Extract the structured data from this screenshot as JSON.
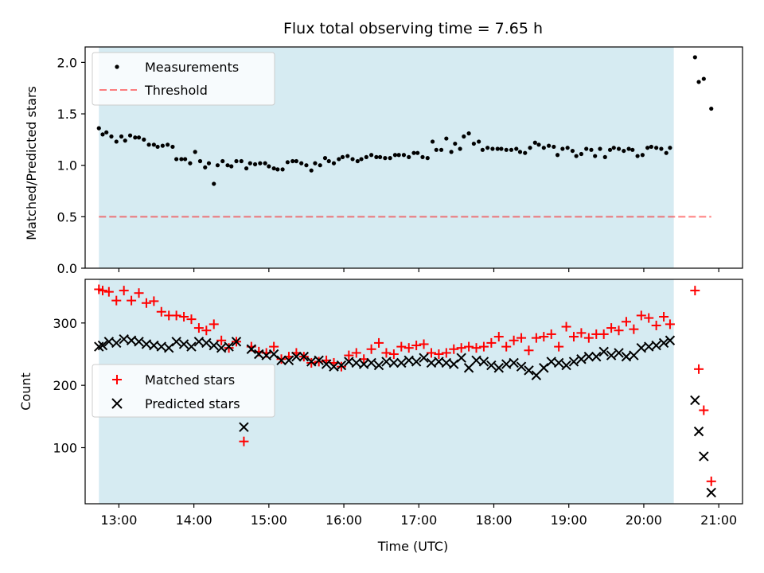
{
  "figure": {
    "title": "Flux total observing time = 7.65 h",
    "xlabel": "Time (UTC)",
    "x_tick_labels": [
      "13:00",
      "14:00",
      "15:00",
      "16:00",
      "17:00",
      "18:00",
      "19:00",
      "20:00",
      "21:00"
    ]
  },
  "colors": {
    "shade": "#add8e6",
    "measurement": "#000000",
    "threshold": "#ff0000",
    "matched": "#ff0000",
    "predicted": "#000000"
  },
  "chart_data": [
    {
      "type": "scatter",
      "ylabel": "Matched/Predicted stars",
      "xlim": [
        "12:33",
        "21:19"
      ],
      "ylim": [
        0,
        2.15
      ],
      "y_ticks": [
        0.0,
        0.5,
        1.0,
        1.5,
        2.0
      ],
      "y_tick_labels": [
        "0.0",
        "0.5",
        "1.0",
        "1.5",
        "2.0"
      ],
      "legend_position": "upper-left",
      "shaded_interval": [
        "12:44",
        "20:24"
      ],
      "threshold": {
        "name": "Threshold",
        "value": 0.5,
        "x_range": [
          "12:44",
          "20:54"
        ]
      },
      "series": [
        {
          "name": "Measurements",
          "x": [
            "12:44",
            "12:47",
            "12:50",
            "12:54",
            "12:58",
            "13:02",
            "13:05",
            "13:09",
            "13:13",
            "13:16",
            "13:20",
            "13:24",
            "13:28",
            "13:31",
            "13:35",
            "13:39",
            "13:43",
            "13:46",
            "13:50",
            "13:53",
            "13:57",
            "14:01",
            "14:05",
            "14:09",
            "14:12",
            "14:16",
            "14:19",
            "14:23",
            "14:27",
            "14:30",
            "14:34",
            "14:38",
            "14:42",
            "14:45",
            "14:49",
            "14:53",
            "14:57",
            "15:00",
            "15:04",
            "15:07",
            "15:11",
            "15:15",
            "15:19",
            "15:22",
            "15:26",
            "15:30",
            "15:34",
            "15:37",
            "15:41",
            "15:45",
            "15:48",
            "15:52",
            "15:56",
            "15:59",
            "16:03",
            "16:07",
            "16:11",
            "16:14",
            "16:18",
            "16:22",
            "16:26",
            "16:29",
            "16:33",
            "16:37",
            "16:41",
            "16:44",
            "16:48",
            "16:52",
            "16:56",
            "16:59",
            "17:03",
            "17:07",
            "17:11",
            "17:14",
            "17:18",
            "17:22",
            "17:26",
            "17:29",
            "17:33",
            "17:36",
            "17:40",
            "17:44",
            "17:48",
            "17:51",
            "17:55",
            "17:59",
            "18:03",
            "18:06",
            "18:10",
            "18:14",
            "18:18",
            "18:21",
            "18:25",
            "18:29",
            "18:33",
            "18:36",
            "18:40",
            "18:44",
            "18:48",
            "18:51",
            "18:55",
            "18:59",
            "19:03",
            "19:06",
            "19:10",
            "19:14",
            "19:18",
            "19:21",
            "19:25",
            "19:29",
            "19:33",
            "19:36",
            "19:40",
            "19:44",
            "19:48",
            "19:51",
            "19:55",
            "19:59",
            "20:03",
            "20:06",
            "20:10",
            "20:14",
            "20:18",
            "20:21",
            "20:41",
            "20:44",
            "20:48",
            "20:54"
          ],
          "y": [
            1.36,
            1.3,
            1.32,
            1.28,
            1.23,
            1.28,
            1.24,
            1.29,
            1.27,
            1.27,
            1.25,
            1.2,
            1.2,
            1.18,
            1.19,
            1.2,
            1.18,
            1.06,
            1.06,
            1.06,
            1.02,
            1.13,
            1.04,
            0.98,
            1.02,
            0.82,
            1.0,
            1.04,
            1.0,
            0.99,
            1.04,
            1.04,
            0.97,
            1.02,
            1.01,
            1.02,
            1.02,
            0.99,
            0.97,
            0.96,
            0.96,
            1.03,
            1.04,
            1.04,
            1.02,
            1.0,
            0.95,
            1.02,
            1.0,
            1.07,
            1.04,
            1.02,
            1.06,
            1.08,
            1.09,
            1.06,
            1.04,
            1.06,
            1.08,
            1.1,
            1.08,
            1.08,
            1.07,
            1.07,
            1.1,
            1.1,
            1.1,
            1.08,
            1.12,
            1.12,
            1.08,
            1.07,
            1.23,
            1.15,
            1.15,
            1.26,
            1.13,
            1.21,
            1.16,
            1.28,
            1.31,
            1.21,
            1.23,
            1.15,
            1.17,
            1.16,
            1.16,
            1.16,
            1.15,
            1.15,
            1.16,
            1.13,
            1.12,
            1.17,
            1.22,
            1.2,
            1.17,
            1.19,
            1.18,
            1.1,
            1.16,
            1.17,
            1.14,
            1.09,
            1.11,
            1.16,
            1.15,
            1.09,
            1.16,
            1.08,
            1.15,
            1.17,
            1.16,
            1.14,
            1.16,
            1.15,
            1.09,
            1.1,
            1.17,
            1.18,
            1.17,
            1.16,
            1.12,
            1.17,
            2.05,
            1.81,
            1.84,
            1.55
          ]
        }
      ]
    },
    {
      "type": "scatter",
      "ylabel": "Count",
      "xlim": [
        "12:33",
        "21:19"
      ],
      "ylim": [
        10,
        370
      ],
      "y_ticks": [
        100,
        200,
        300
      ],
      "y_tick_labels": [
        "100",
        "200",
        "300"
      ],
      "legend_position": "center-left",
      "shaded_interval": [
        "12:44",
        "20:24"
      ],
      "series": [
        {
          "name": "Matched stars",
          "marker": "+",
          "x": [
            "12:44",
            "12:47",
            "12:52",
            "12:58",
            "13:04",
            "13:10",
            "13:16",
            "13:22",
            "13:28",
            "13:34",
            "13:40",
            "13:46",
            "13:52",
            "13:58",
            "14:04",
            "14:10",
            "14:16",
            "14:22",
            "14:28",
            "14:34",
            "14:40",
            "14:46",
            "14:52",
            "14:58",
            "15:04",
            "15:10",
            "15:16",
            "15:22",
            "15:28",
            "15:34",
            "15:40",
            "15:46",
            "15:52",
            "15:58",
            "16:04",
            "16:10",
            "16:16",
            "16:22",
            "16:28",
            "16:34",
            "16:40",
            "16:46",
            "16:52",
            "16:58",
            "17:04",
            "17:10",
            "17:16",
            "17:22",
            "17:28",
            "17:34",
            "17:40",
            "17:46",
            "17:52",
            "17:58",
            "18:04",
            "18:10",
            "18:16",
            "18:22",
            "18:28",
            "18:34",
            "18:40",
            "18:46",
            "18:52",
            "18:58",
            "19:04",
            "19:10",
            "19:16",
            "19:22",
            "19:28",
            "19:34",
            "19:40",
            "19:46",
            "19:52",
            "19:58",
            "20:04",
            "20:10",
            "20:16",
            "20:21",
            "20:41",
            "20:44",
            "20:48",
            "20:54"
          ],
          "y": [
            354,
            352,
            350,
            336,
            352,
            336,
            348,
            332,
            335,
            318,
            312,
            312,
            310,
            306,
            292,
            288,
            298,
            272,
            260,
            270,
            110,
            262,
            254,
            252,
            262,
            242,
            246,
            252,
            246,
            236,
            238,
            240,
            236,
            230,
            248,
            252,
            242,
            258,
            268,
            252,
            250,
            262,
            260,
            264,
            266,
            252,
            250,
            252,
            258,
            260,
            262,
            260,
            262,
            268,
            278,
            262,
            272,
            276,
            256,
            276,
            278,
            282,
            262,
            294,
            278,
            284,
            276,
            282,
            282,
            292,
            288,
            302,
            290,
            312,
            308,
            296,
            310,
            298,
            352,
            226,
            160,
            46
          ]
        },
        {
          "name": "Predicted stars",
          "marker": "x",
          "x": [
            "12:44",
            "12:47",
            "12:52",
            "12:58",
            "13:04",
            "13:10",
            "13:16",
            "13:22",
            "13:28",
            "13:34",
            "13:40",
            "13:46",
            "13:52",
            "13:58",
            "14:04",
            "14:10",
            "14:16",
            "14:22",
            "14:28",
            "14:34",
            "14:40",
            "14:46",
            "14:52",
            "14:58",
            "15:04",
            "15:10",
            "15:16",
            "15:22",
            "15:28",
            "15:34",
            "15:40",
            "15:46",
            "15:52",
            "15:58",
            "16:04",
            "16:10",
            "16:16",
            "16:22",
            "16:28",
            "16:34",
            "16:40",
            "16:46",
            "16:52",
            "16:58",
            "17:04",
            "17:10",
            "17:16",
            "17:22",
            "17:28",
            "17:34",
            "17:40",
            "17:46",
            "17:52",
            "17:58",
            "18:04",
            "18:10",
            "18:16",
            "18:22",
            "18:28",
            "18:34",
            "18:40",
            "18:46",
            "18:52",
            "18:58",
            "19:04",
            "19:10",
            "19:16",
            "19:22",
            "19:28",
            "19:34",
            "19:40",
            "19:46",
            "19:52",
            "19:58",
            "20:04",
            "20:10",
            "20:16",
            "20:21",
            "20:41",
            "20:44",
            "20:48",
            "20:54"
          ],
          "y": [
            262,
            264,
            270,
            268,
            274,
            272,
            270,
            266,
            264,
            262,
            260,
            270,
            266,
            262,
            270,
            268,
            264,
            260,
            262,
            270,
            133,
            258,
            250,
            248,
            250,
            240,
            240,
            246,
            246,
            238,
            240,
            234,
            230,
            232,
            238,
            236,
            234,
            236,
            232,
            238,
            236,
            236,
            240,
            238,
            244,
            236,
            238,
            236,
            234,
            244,
            228,
            240,
            238,
            232,
            228,
            234,
            236,
            230,
            224,
            216,
            228,
            238,
            236,
            232,
            238,
            242,
            246,
            246,
            254,
            248,
            252,
            246,
            248,
            260,
            262,
            264,
            268,
            272,
            176,
            126,
            86,
            28
          ]
        }
      ]
    }
  ]
}
